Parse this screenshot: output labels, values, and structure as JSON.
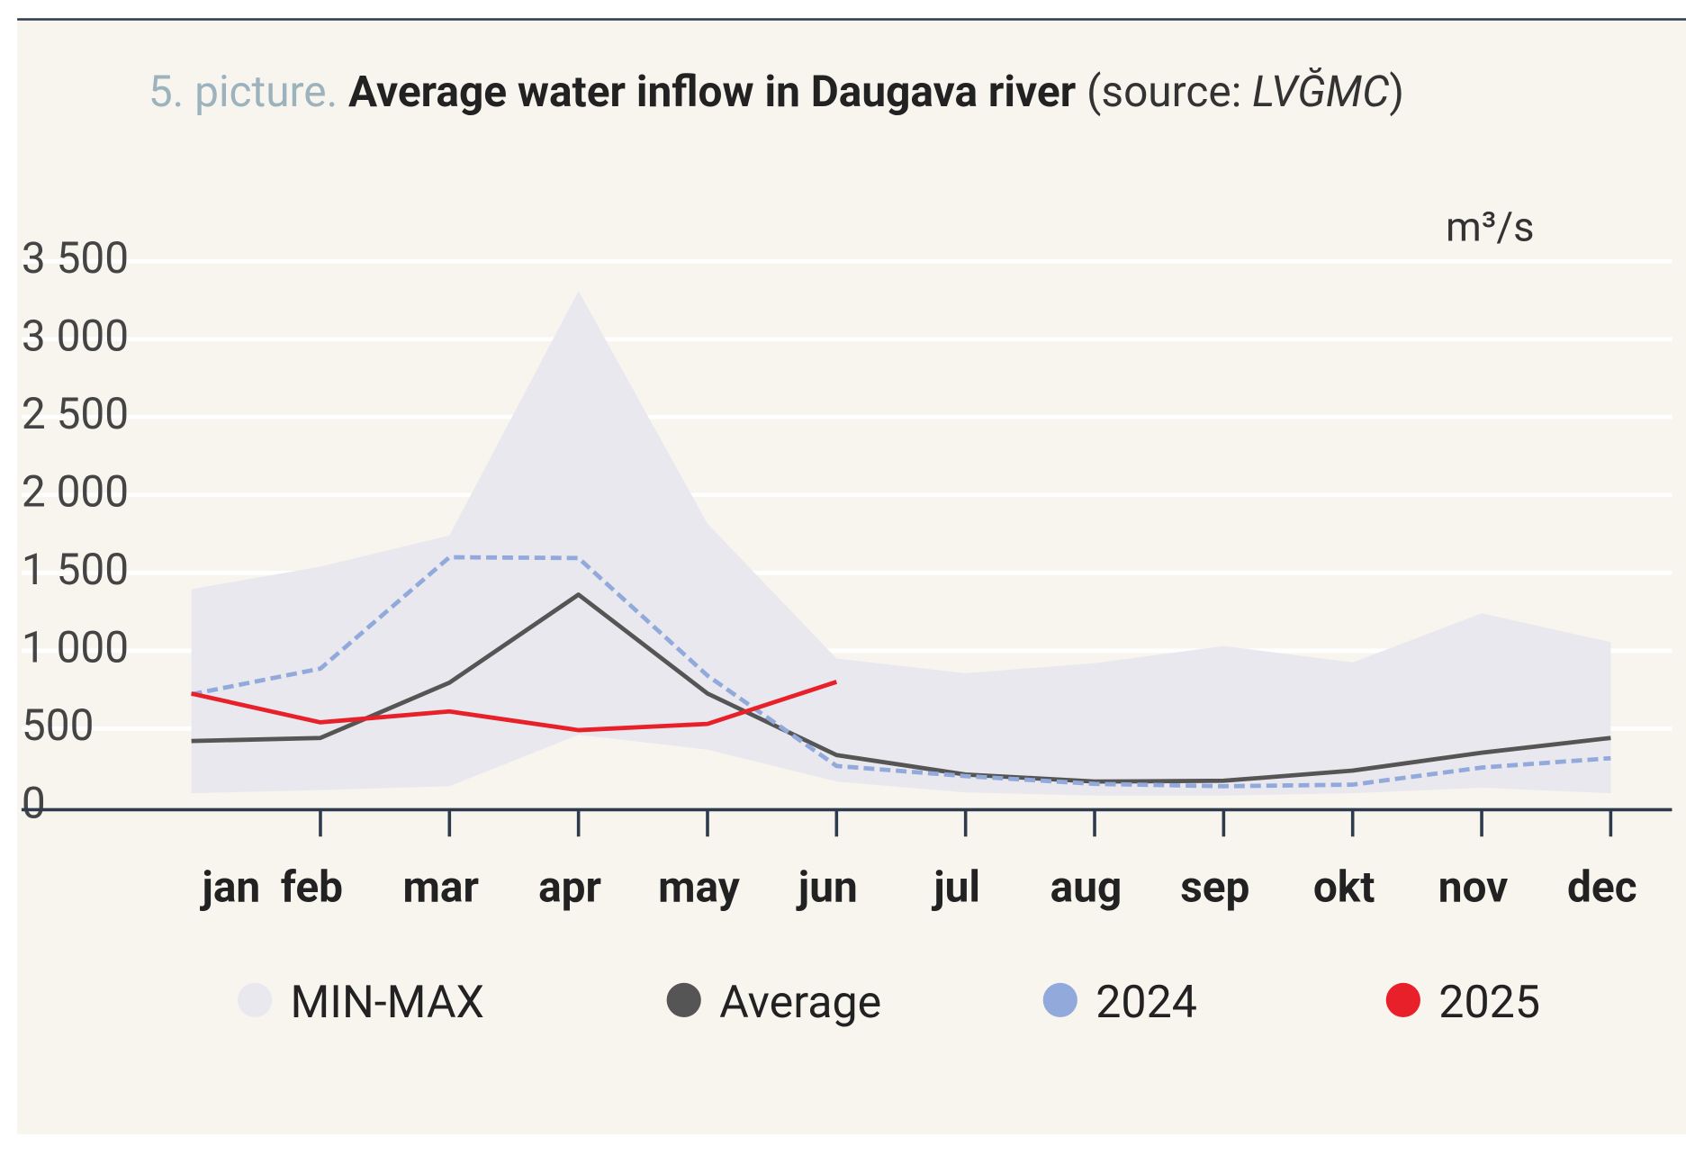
{
  "chart_data": {
    "type": "line",
    "figure_label": "5. picture.",
    "title": "Average water inflow in Daugava river",
    "source": {
      "prefix": "(source:",
      "name": "LVĞMC",
      "suffix": ")"
    },
    "y_unit": "m³/s",
    "categories": [
      "jan",
      "feb",
      "mar",
      "apr",
      "may",
      "jun",
      "jul",
      "aug",
      "sep",
      "okt",
      "nov",
      "dec"
    ],
    "ylim": [
      0,
      3500
    ],
    "yticks": [
      0,
      500,
      {
        "value": 1000,
        "label": "1 000"
      },
      {
        "value": 1500,
        "label": "1 500"
      },
      {
        "value": 2000,
        "label": "2 000"
      },
      {
        "value": 2500,
        "label": "2 500"
      },
      {
        "value": 3000,
        "label": "3 000"
      },
      {
        "value": 3500,
        "label": "3 500"
      }
    ],
    "grid": true,
    "legend": "bottom",
    "series": [
      {
        "name": "MIN-MAX",
        "color": "#e9e8ee",
        "kind": "band",
        "min": [
          85,
          105,
          130,
          460,
          365,
          160,
          90,
          70,
          70,
          85,
          120,
          85
        ],
        "max": [
          1395,
          1540,
          1740,
          3310,
          1815,
          950,
          855,
          920,
          1030,
          925,
          1240,
          1055
        ]
      },
      {
        "name": "Average",
        "color": "#555555",
        "values": [
          420,
          440,
          795,
          1360,
          725,
          330,
          205,
          160,
          165,
          230,
          345,
          440
        ]
      },
      {
        "name": "2024",
        "color": "#92aadb",
        "dashed": true,
        "values": [
          720,
          885,
          1600,
          1595,
          840,
          260,
          195,
          145,
          130,
          140,
          250,
          310
        ]
      },
      {
        "name": "2025",
        "color": "#e8202a",
        "values": [
          725,
          540,
          610,
          490,
          530,
          800,
          null,
          null,
          null,
          null,
          null,
          null
        ]
      }
    ]
  }
}
